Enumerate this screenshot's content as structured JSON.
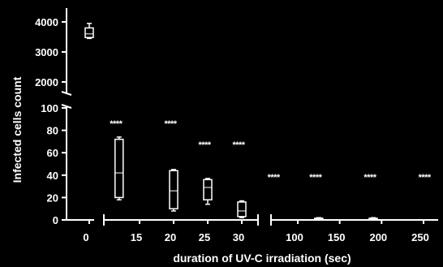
{
  "chart_data": {
    "type": "box",
    "ylabel": "Infected cells count",
    "xlabel": "duration of UV-C irradiation (sec)",
    "x_ticks": [
      "0",
      "15",
      "20",
      "25",
      "30",
      "100",
      "150",
      "200",
      "250"
    ],
    "y_ticks_upper": [
      "4000",
      "3000",
      "2000"
    ],
    "y_ticks_lower": [
      "100",
      "80",
      "60",
      "40",
      "20",
      "0"
    ],
    "y_segments": [
      {
        "range": [
          0,
          100
        ]
      },
      {
        "range": [
          1500,
          4300
        ]
      }
    ],
    "x_segments": [
      {
        "range": [
          0,
          0
        ]
      },
      {
        "range": [
          12,
          32
        ]
      },
      {
        "range": [
          80,
          260
        ]
      }
    ],
    "boxes": [
      {
        "x": 0,
        "min": 3450,
        "q1": 3480,
        "median": 3600,
        "q3": 3800,
        "max": 3950,
        "significance": ""
      },
      {
        "x": 12,
        "min": 18,
        "q1": 20,
        "median": 42,
        "q3": 72,
        "max": 74,
        "significance": "****"
      },
      {
        "x": 20,
        "min": 8,
        "q1": 10,
        "median": 26,
        "q3": 44,
        "max": 45,
        "significance": "****"
      },
      {
        "x": 25,
        "min": 14,
        "q1": 18,
        "median": 29,
        "q3": 36,
        "max": 37,
        "significance": "****"
      },
      {
        "x": 30,
        "min": 2,
        "q1": 3,
        "median": 8,
        "q3": 16,
        "max": 17,
        "significance": "****"
      },
      {
        "x": 75,
        "min": 0,
        "q1": 0,
        "median": 0,
        "q3": 0,
        "max": 0,
        "significance": "****"
      },
      {
        "x": 125,
        "min": 0,
        "q1": 0.5,
        "median": 1,
        "q3": 1.5,
        "max": 2,
        "significance": "****"
      },
      {
        "x": 190,
        "min": 0,
        "q1": 0.5,
        "median": 1,
        "q3": 1.5,
        "max": 2,
        "significance": "****"
      },
      {
        "x": 255,
        "min": 0,
        "q1": 0,
        "median": 0,
        "q3": 0,
        "max": 0,
        "significance": "****"
      }
    ]
  }
}
